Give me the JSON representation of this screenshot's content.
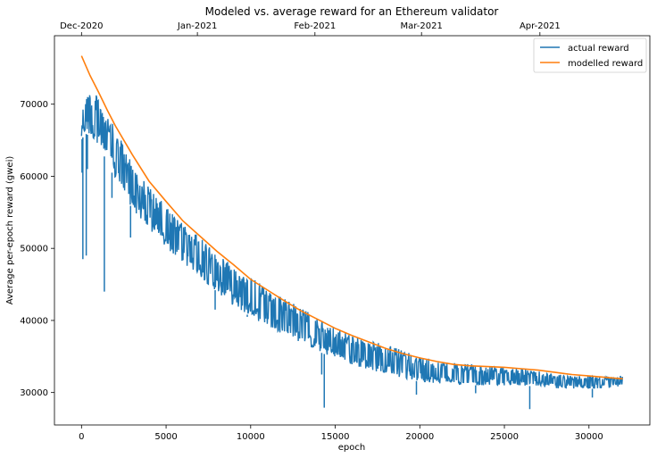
{
  "chart_data": {
    "type": "line",
    "title": "Modeled vs. average reward for an Ethereum validator",
    "xlabel": "epoch",
    "ylabel": "Average per-epoch reward (gwei)",
    "xlim": [
      -1600,
      33600
    ],
    "ylim": [
      25500,
      79500
    ],
    "x_ticks": [
      0,
      5000,
      10000,
      15000,
      20000,
      25000,
      30000
    ],
    "y_ticks": [
      30000,
      40000,
      50000,
      60000,
      70000
    ],
    "top_axis_ticks": [
      {
        "label": "Dec-2020",
        "epoch": 0
      },
      {
        "label": "Jan-2021",
        "epoch": 6850
      },
      {
        "label": "Feb-2021",
        "epoch": 13800
      },
      {
        "label": "Mar-2021",
        "epoch": 20100
      },
      {
        "label": "Apr-2021",
        "epoch": 27100
      }
    ],
    "legend": {
      "position": "top-right"
    },
    "grid": false,
    "series": [
      {
        "name": "actual reward",
        "color": "#1f77b4",
        "envelope": {
          "x": [
            0,
            200,
            500,
            1000,
            1500,
            2000,
            3000,
            4000,
            5000,
            6000,
            7000,
            8000,
            9000,
            10000,
            11000,
            12000,
            13000,
            14000,
            15000,
            16000,
            17000,
            18000,
            19000,
            20000,
            21000,
            22000,
            23000,
            24000,
            25000,
            26000,
            27000,
            28000,
            29000,
            30000,
            31000,
            32000
          ],
          "upper": [
            70500,
            71500,
            72000,
            71000,
            68800,
            66500,
            62000,
            58500,
            55800,
            53400,
            51500,
            49500,
            47700,
            46000,
            44500,
            43000,
            41800,
            40300,
            38900,
            38000,
            37200,
            36700,
            35800,
            35000,
            34400,
            34100,
            33900,
            33700,
            33400,
            33300,
            33000,
            32600,
            32400,
            32300,
            32300,
            32300
          ],
          "lower": [
            65000,
            66000,
            65500,
            64500,
            62000,
            59500,
            55500,
            52500,
            50000,
            48000,
            46000,
            44000,
            42000,
            40500,
            39200,
            38000,
            36900,
            35700,
            34700,
            33800,
            33100,
            32700,
            32000,
            31500,
            31300,
            31100,
            31000,
            31000,
            31000,
            31000,
            30800,
            30600,
            30500,
            30500,
            30600,
            30800
          ]
        },
        "spikes": [
          {
            "x": 30,
            "y": 60500
          },
          {
            "x": 80,
            "y": 48500
          },
          {
            "x": 350,
            "y": 61000
          },
          {
            "x": 280,
            "y": 49000
          },
          {
            "x": 1350,
            "y": 44000
          },
          {
            "x": 1800,
            "y": 57000
          },
          {
            "x": 2900,
            "y": 51500
          },
          {
            "x": 7900,
            "y": 41500
          },
          {
            "x": 9800,
            "y": 40500
          },
          {
            "x": 14350,
            "y": 27900
          },
          {
            "x": 14200,
            "y": 32500
          },
          {
            "x": 19800,
            "y": 29700
          },
          {
            "x": 23300,
            "y": 29900
          },
          {
            "x": 26500,
            "y": 27700
          },
          {
            "x": 30200,
            "y": 29300
          }
        ]
      },
      {
        "name": "modelled reward",
        "color": "#ff7f0e",
        "x": [
          0,
          500,
          1000,
          1500,
          2000,
          3000,
          4000,
          5000,
          6000,
          7000,
          8000,
          9000,
          10000,
          11000,
          12000,
          13000,
          14000,
          15000,
          16000,
          17000,
          18000,
          19000,
          20000,
          21000,
          22000,
          23000,
          24000,
          25000,
          26000,
          27000,
          28000,
          29000,
          30000,
          31000,
          32000
        ],
        "y": [
          76700,
          74000,
          71700,
          69300,
          67000,
          63000,
          59300,
          56500,
          53800,
          51700,
          49600,
          47700,
          45700,
          44200,
          42700,
          41300,
          40100,
          38900,
          37900,
          37000,
          36100,
          35400,
          34800,
          34300,
          33900,
          33700,
          33600,
          33500,
          33300,
          33100,
          32800,
          32500,
          32300,
          32100,
          31900
        ]
      }
    ]
  }
}
